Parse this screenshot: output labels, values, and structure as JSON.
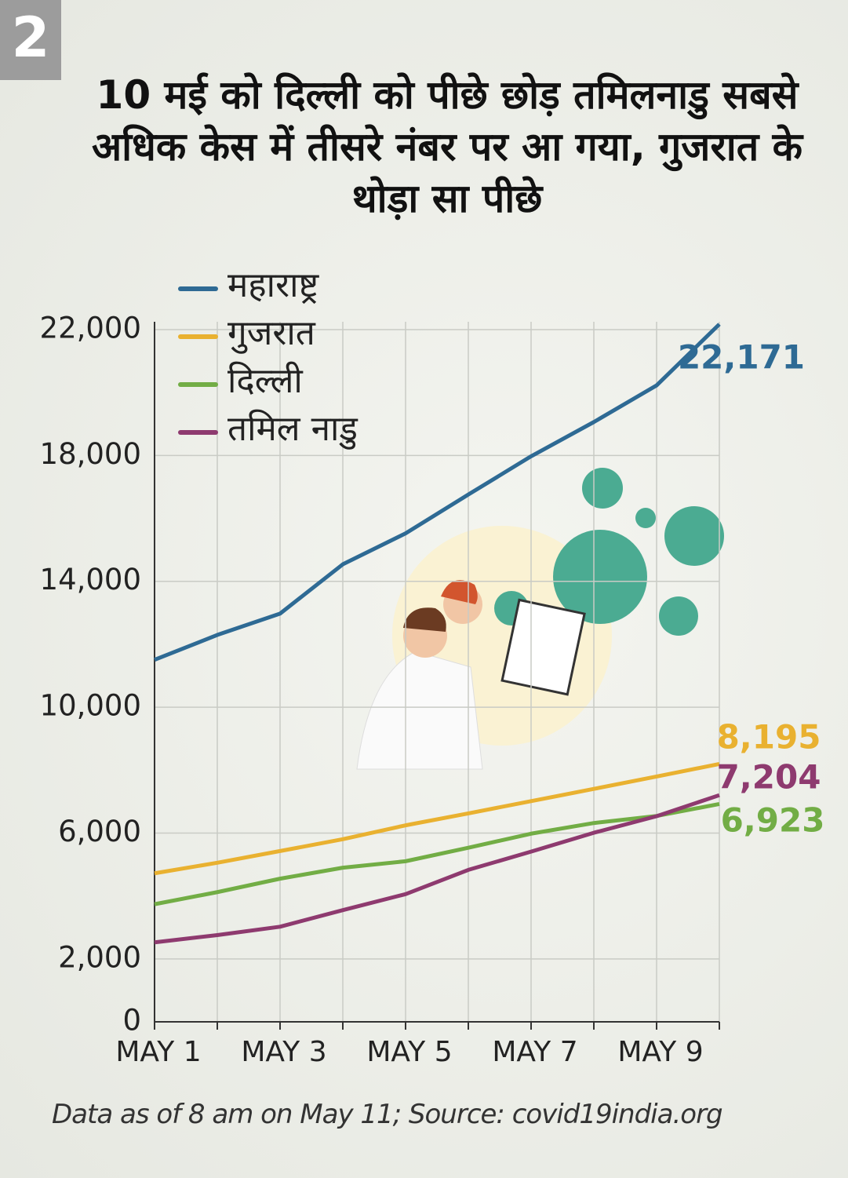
{
  "badge": "2",
  "chart_data": {
    "type": "line",
    "title": "10 मई को दिल्ली को पीछे छोड़ तमिलनाडु सबसे अधिक केस में तीसरे नंबर पर आ गया, गुजरात के थोड़ा सा पीछे",
    "categories": [
      "MAY 1",
      null,
      "MAY 3",
      null,
      "MAY 5",
      null,
      "MAY 7",
      null,
      "MAY 9",
      null
    ],
    "series": [
      {
        "name": "महाराष्ट्र",
        "color": "#2e6a94",
        "values": [
          11506,
          12296,
          12974,
          14541,
          15525,
          16758,
          17974,
          19063,
          20228,
          22171
        ],
        "value_labels": [
          null,
          null,
          null,
          null,
          null,
          null,
          null,
          null,
          null,
          "22,171"
        ]
      },
      {
        "name": "गुजरात",
        "color": "#e9b130",
        "values": [
          4721,
          5055,
          5428,
          5804,
          6245,
          6625,
          7013,
          7403,
          7797,
          8195
        ],
        "value_labels": [
          null,
          null,
          null,
          null,
          null,
          null,
          null,
          null,
          null,
          "8,195"
        ]
      },
      {
        "name": "दिल्ली",
        "color": "#72ad45",
        "values": [
          3738,
          4122,
          4549,
          4898,
          5104,
          5532,
          5980,
          6318,
          6542,
          6923
        ],
        "value_labels": [
          null,
          null,
          null,
          null,
          null,
          null,
          null,
          null,
          null,
          "6,923"
        ]
      },
      {
        "name": "तमिल नाडु",
        "color": "#8e3a6f",
        "values": [
          2526,
          2757,
          3023,
          3550,
          4058,
          4829,
          5409,
          6009,
          6535,
          7204
        ],
        "value_labels": [
          null,
          null,
          null,
          null,
          null,
          null,
          null,
          null,
          null,
          "7,204"
        ]
      }
    ],
    "ylim": [
      0,
      22000
    ],
    "yticks": [
      0,
      {
        "value": 2000,
        "label": "2,000"
      },
      {
        "value": 6000,
        "label": "6,000"
      },
      {
        "value": 10000,
        "label": "10,000"
      },
      {
        "value": 14000,
        "label": "14,000"
      },
      {
        "value": 18000,
        "label": "18,000"
      },
      {
        "value": 22000,
        "label": "22,000"
      }
    ],
    "grid": true,
    "legend": "top-left",
    "source": "Data as of 8 am on May 11; Source: covid19india.org"
  }
}
